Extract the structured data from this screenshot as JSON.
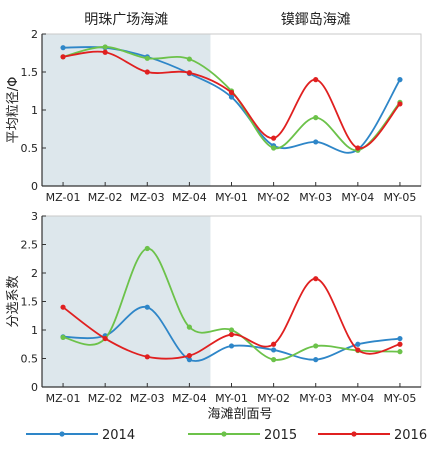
{
  "chart_data": [
    {
      "type": "line",
      "categories": [
        "MZ-01",
        "MZ-02",
        "MZ-03",
        "MZ-04",
        "MY-01",
        "MY-02",
        "MY-03",
        "MY-04",
        "MY-05"
      ],
      "ylabel": "平均粒径/Φ",
      "ylim": [
        0,
        2
      ],
      "yticks": [
        0,
        0.5,
        1,
        1.5,
        2
      ],
      "yticklabels": [
        "0",
        "0.5",
        "1",
        "1.5",
        "2"
      ],
      "regions": [
        {
          "label": "明珠广场海滩",
          "from": 0,
          "to": 3,
          "shaded": true
        },
        {
          "label": "镆鎁岛海滩",
          "from": 4,
          "to": 8,
          "shaded": false
        }
      ],
      "series": [
        {
          "name": "2014",
          "values": [
            1.82,
            1.82,
            1.7,
            1.48,
            1.17,
            0.53,
            0.58,
            0.48,
            1.4
          ]
        },
        {
          "name": "2015",
          "values": [
            1.7,
            1.83,
            1.68,
            1.67,
            1.25,
            0.5,
            0.9,
            0.47,
            1.1
          ]
        },
        {
          "name": "2016",
          "values": [
            1.7,
            1.76,
            1.5,
            1.49,
            1.23,
            0.63,
            1.4,
            0.5,
            1.08
          ]
        }
      ]
    },
    {
      "type": "line",
      "categories": [
        "MZ-01",
        "MZ-02",
        "MZ-03",
        "MZ-04",
        "MY-01",
        "MY-02",
        "MY-03",
        "MY-04",
        "MY-05"
      ],
      "xlabel": "海滩剖面号",
      "ylabel": "分选系数",
      "ylim": [
        0,
        3
      ],
      "yticks": [
        0,
        0.5,
        1,
        1.5,
        2,
        2.5,
        3
      ],
      "yticklabels": [
        "0",
        "0.5",
        "1",
        "1.5",
        "2",
        "2.5",
        "3"
      ],
      "series": [
        {
          "name": "2014",
          "values": [
            0.88,
            0.9,
            1.4,
            0.48,
            0.72,
            0.65,
            0.48,
            0.75,
            0.85
          ]
        },
        {
          "name": "2015",
          "values": [
            0.87,
            0.85,
            2.43,
            1.05,
            1.0,
            0.48,
            0.72,
            0.64,
            0.62
          ]
        },
        {
          "name": "2016",
          "values": [
            1.4,
            0.85,
            0.53,
            0.55,
            0.92,
            0.75,
            1.9,
            0.65,
            0.75
          ]
        }
      ]
    }
  ],
  "legend": [
    {
      "name": "2014",
      "color": "#2e86c8"
    },
    {
      "name": "2015",
      "color": "#6cc24a"
    },
    {
      "name": "2016",
      "color": "#e02020"
    }
  ],
  "colors": {
    "shade": "#dde7ec",
    "axis": "#333333"
  }
}
